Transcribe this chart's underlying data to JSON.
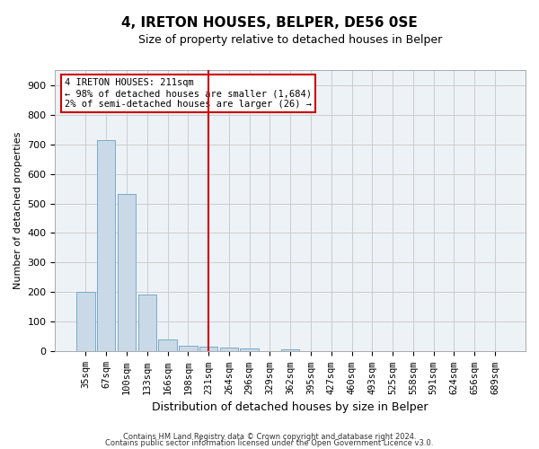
{
  "title": "4, IRETON HOUSES, BELPER, DE56 0SE",
  "subtitle": "Size of property relative to detached houses in Belper",
  "xlabel": "Distribution of detached houses by size in Belper",
  "ylabel": "Number of detached properties",
  "bar_labels": [
    "35sqm",
    "67sqm",
    "100sqm",
    "133sqm",
    "166sqm",
    "198sqm",
    "231sqm",
    "264sqm",
    "296sqm",
    "329sqm",
    "362sqm",
    "395sqm",
    "427sqm",
    "460sqm",
    "493sqm",
    "525sqm",
    "558sqm",
    "591sqm",
    "624sqm",
    "656sqm",
    "689sqm"
  ],
  "bar_values": [
    200,
    714,
    533,
    193,
    42,
    20,
    15,
    13,
    10,
    0,
    8,
    0,
    0,
    0,
    0,
    0,
    0,
    0,
    0,
    0,
    0
  ],
  "bar_color": "#c9d9e8",
  "bar_edge_color": "#7aaac8",
  "grid_color": "#cccccc",
  "vline_x_index": 6,
  "vline_color": "#cc0000",
  "annotation_text": "4 IRETON HOUSES: 211sqm\n← 98% of detached houses are smaller (1,684)\n2% of semi-detached houses are larger (26) →",
  "annotation_box_color": "#ffffff",
  "annotation_box_edge": "#cc0000",
  "ylim": [
    0,
    950
  ],
  "yticks": [
    0,
    100,
    200,
    300,
    400,
    500,
    600,
    700,
    800,
    900
  ],
  "footer1": "Contains HM Land Registry data © Crown copyright and database right 2024.",
  "footer2": "Contains public sector information licensed under the Open Government Licence v3.0.",
  "bg_color": "#edf2f7",
  "title_fontsize": 11,
  "subtitle_fontsize": 9
}
